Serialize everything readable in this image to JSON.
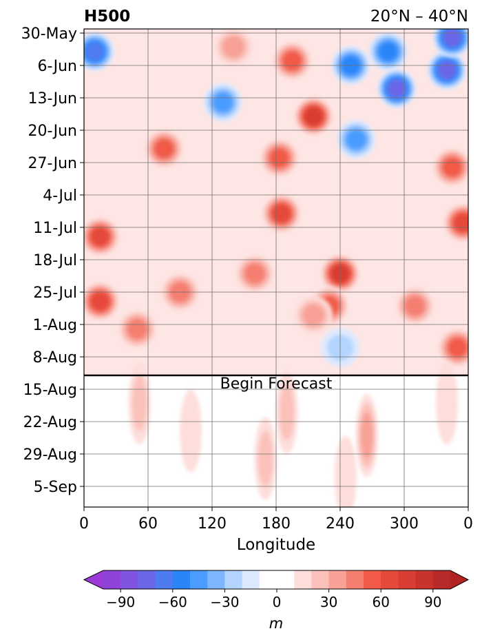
{
  "chart_data": {
    "type": "heatmap",
    "title_left": "H500",
    "title_right": "20°N – 40°N",
    "xlabel": "Longitude",
    "x_ticks": [
      "0",
      "60",
      "120",
      "180",
      "240",
      "300",
      "0"
    ],
    "xlim": [
      0,
      360
    ],
    "y_ticks": [
      "30-May",
      "6-Jun",
      "13-Jun",
      "20-Jun",
      "27-Jun",
      "4-Jul",
      "11-Jul",
      "18-Jul",
      "25-Jul",
      "1-Aug",
      "8-Aug",
      "15-Aug",
      "22-Aug",
      "29-Aug",
      "5-Sep"
    ],
    "y_orientation": "time increases downward",
    "grid": true,
    "forecast_line_label": "Begin Forecast",
    "forecast_line_date": "12-Aug",
    "colorbar": {
      "orientation": "horizontal",
      "label": "m",
      "ticks": [
        "−90",
        "−60",
        "−30",
        "0",
        "30",
        "60",
        "90"
      ],
      "tick_values": [
        -90,
        -60,
        -30,
        0,
        30,
        60,
        90
      ],
      "levels": [
        -100,
        -90,
        -80,
        -70,
        -60,
        -50,
        -40,
        -30,
        -20,
        -10,
        10,
        20,
        30,
        40,
        50,
        60,
        70,
        80,
        90,
        100
      ],
      "colors": [
        "#8e44d8",
        "#7f55e0",
        "#6a66e8",
        "#4f7bf0",
        "#2a85f8",
        "#4a9cff",
        "#7cb6ff",
        "#b2d4ff",
        "#dde9ff",
        "#ffffff",
        "#fddedb",
        "#fbc1ba",
        "#f8a196",
        "#f47f71",
        "#f05a47",
        "#e54a3b",
        "#d83e33",
        "#c9332e",
        "#b82a29"
      ],
      "extend_min_color": "#9b3ad6",
      "extend_max_color": "#b22222"
    },
    "anomaly_features": [
      {
        "lon": 10,
        "date": "3-Jun",
        "value": -65
      },
      {
        "lon": 130,
        "date": "14-Jun",
        "value": -45
      },
      {
        "lon": 140,
        "date": "2-Jun",
        "value": 30
      },
      {
        "lon": 195,
        "date": "5-Jun",
        "value": 55
      },
      {
        "lon": 215,
        "date": "17-Jun",
        "value": 70
      },
      {
        "lon": 250,
        "date": "6-Jun",
        "value": -55
      },
      {
        "lon": 255,
        "date": "22-Jun",
        "value": -45
      },
      {
        "lon": 285,
        "date": "3-Jun",
        "value": -55
      },
      {
        "lon": 293,
        "date": "11-Jun",
        "value": -70
      },
      {
        "lon": 340,
        "date": "7-Jun",
        "value": -75
      },
      {
        "lon": 345,
        "date": "31-May",
        "value": -70
      },
      {
        "lon": 75,
        "date": "24-Jun",
        "value": 55
      },
      {
        "lon": 183,
        "date": "26-Jun",
        "value": 55
      },
      {
        "lon": 185,
        "date": "8-Jul",
        "value": 65
      },
      {
        "lon": 15,
        "date": "13-Jul",
        "value": 60
      },
      {
        "lon": 15,
        "date": "27-Jul",
        "value": 60
      },
      {
        "lon": 90,
        "date": "25-Jul",
        "value": 45
      },
      {
        "lon": 160,
        "date": "21-Jul",
        "value": 40
      },
      {
        "lon": 240,
        "date": "21-Jul",
        "value": 70
      },
      {
        "lon": 230,
        "date": "28-Jul",
        "value": 55
      },
      {
        "lon": 355,
        "date": "10-Jul",
        "value": 60
      },
      {
        "lon": 345,
        "date": "28-Jun",
        "value": 55
      },
      {
        "lon": 310,
        "date": "28-Jul",
        "value": 45
      },
      {
        "lon": 240,
        "date": "6-Aug",
        "value": -20
      },
      {
        "lon": 215,
        "date": "30-Jul",
        "value": 35
      },
      {
        "lon": 50,
        "date": "2-Aug",
        "value": 40
      },
      {
        "lon": 350,
        "date": "6-Aug",
        "value": 50
      },
      {
        "lon": 52,
        "date": "18-Aug",
        "value": 20
      },
      {
        "lon": 190,
        "date": "20-Aug",
        "value": 20
      },
      {
        "lon": 265,
        "date": "25-Aug",
        "value": 30
      },
      {
        "lon": 170,
        "date": "30-Aug",
        "value": 20
      },
      {
        "lon": 245,
        "date": "3-Sep",
        "value": 15
      },
      {
        "lon": 340,
        "date": "18-Aug",
        "value": 15
      },
      {
        "lon": 100,
        "date": "24-Aug",
        "value": 12
      }
    ]
  }
}
